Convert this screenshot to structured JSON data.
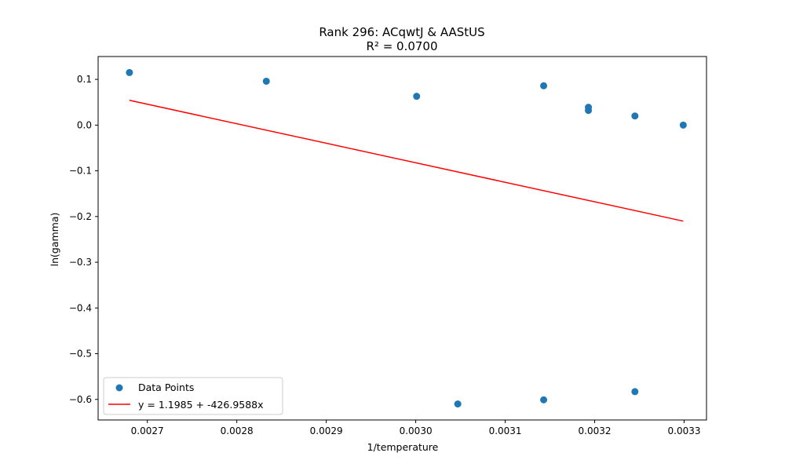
{
  "chart_data": {
    "type": "scatter",
    "title": "Rank 296: ACqwtJ & AAStUS",
    "subtitle": "R² = 0.0700",
    "xlabel": "1/temperature",
    "ylabel": "ln(gamma)",
    "xlim": [
      0.002645,
      0.003325
    ],
    "ylim": [
      -0.645,
      0.15
    ],
    "xticks": [
      0.0027,
      0.0028,
      0.0029,
      0.003,
      0.0031,
      0.0032,
      0.0033
    ],
    "xtick_labels": [
      "0.0027",
      "0.0028",
      "0.0029",
      "0.0030",
      "0.0031",
      "0.0032",
      "0.0033"
    ],
    "yticks": [
      0.1,
      0.0,
      -0.1,
      -0.2,
      -0.3,
      -0.4,
      -0.5,
      -0.6
    ],
    "ytick_labels": [
      "0.1",
      "0.0",
      "−0.1",
      "−0.2",
      "−0.3",
      "−0.4",
      "−0.5",
      "−0.6"
    ],
    "grid": false,
    "legend_position": "lower-left",
    "series": [
      {
        "name": "Data Points",
        "kind": "scatter",
        "color": "#1f77b4",
        "points": [
          {
            "x": 0.00268,
            "y": 0.115
          },
          {
            "x": 0.002833,
            "y": 0.096
          },
          {
            "x": 0.003001,
            "y": 0.063
          },
          {
            "x": 0.003143,
            "y": 0.086
          },
          {
            "x": 0.003193,
            "y": 0.039
          },
          {
            "x": 0.003193,
            "y": 0.032
          },
          {
            "x": 0.003245,
            "y": 0.02
          },
          {
            "x": 0.003299,
            "y": 0.0
          },
          {
            "x": 0.003047,
            "y": -0.61
          },
          {
            "x": 0.003143,
            "y": -0.601
          },
          {
            "x": 0.003245,
            "y": -0.583
          }
        ]
      },
      {
        "name": "y = 1.1985 + -426.9588x",
        "kind": "line",
        "color": "#ff0000",
        "intercept": 1.1985,
        "slope": -426.9588,
        "x_range": [
          0.00268,
          0.003299
        ]
      }
    ]
  }
}
